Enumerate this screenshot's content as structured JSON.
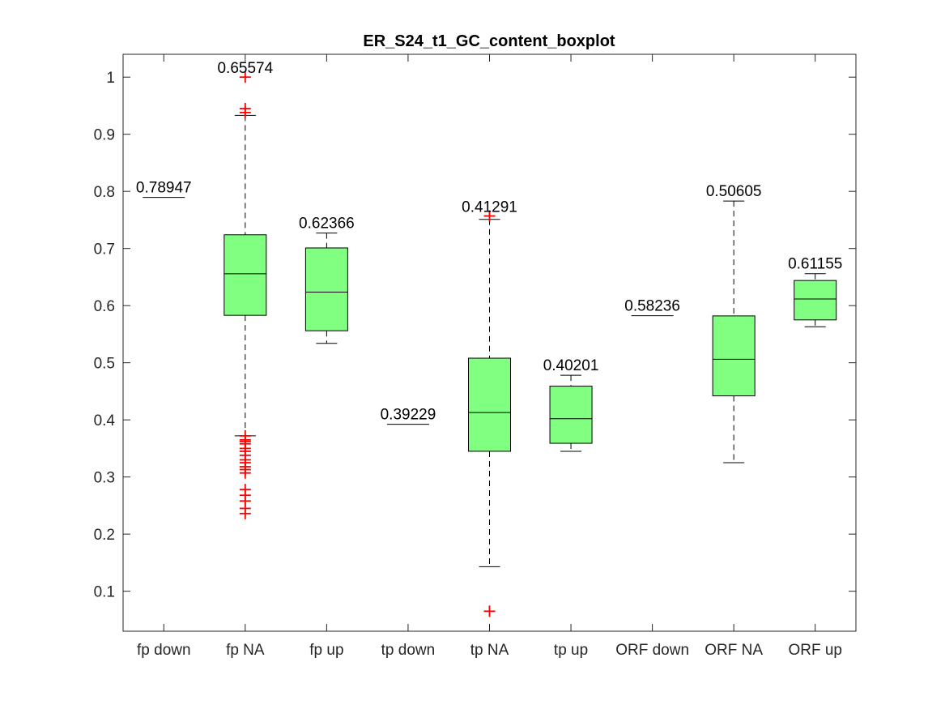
{
  "chart_data": {
    "type": "box",
    "title": "ER_S24_t1_GC_content_boxplot",
    "xlabel": "",
    "ylabel": "",
    "ylim": [
      0.03,
      1.04
    ],
    "yticks": [
      0.1,
      0.2,
      0.3,
      0.4,
      0.5,
      0.6,
      0.7,
      0.8,
      0.9,
      1
    ],
    "ytick_labels": [
      "0.1",
      "0.2",
      "0.3",
      "0.4",
      "0.5",
      "0.6",
      "0.7",
      "0.8",
      "0.9",
      "1"
    ],
    "grid": false,
    "categories": [
      "fp down",
      "fp NA",
      "fp up",
      "tp down",
      "tp NA",
      "tp up",
      "ORF down",
      "ORF NA",
      "ORF up"
    ],
    "boxes": [
      {
        "category": "fp down",
        "whisker_low": 0.78947,
        "q1": 0.78947,
        "median": 0.78947,
        "q3": 0.78947,
        "whisker_high": 0.78947,
        "median_label": "0.78947",
        "outliers": []
      },
      {
        "category": "fp NA",
        "whisker_low": 0.372,
        "q1": 0.583,
        "median": 0.65574,
        "q3": 0.724,
        "whisker_high": 0.933,
        "median_label": "0.65574",
        "outliers": [
          1.0,
          0.945,
          0.938,
          0.372,
          0.365,
          0.362,
          0.358,
          0.35,
          0.345,
          0.338,
          0.33,
          0.325,
          0.318,
          0.313,
          0.307,
          0.278,
          0.268,
          0.258,
          0.245,
          0.236
        ]
      },
      {
        "category": "fp up",
        "whisker_low": 0.534,
        "q1": 0.556,
        "median": 0.62366,
        "q3": 0.701,
        "whisker_high": 0.727,
        "median_label": "0.62366",
        "outliers": []
      },
      {
        "category": "tp down",
        "whisker_low": 0.39229,
        "q1": 0.39229,
        "median": 0.39229,
        "q3": 0.39229,
        "whisker_high": 0.39229,
        "median_label": "0.39229",
        "outliers": []
      },
      {
        "category": "tp NA",
        "whisker_low": 0.143,
        "q1": 0.345,
        "median": 0.41291,
        "q3": 0.508,
        "whisker_high": 0.751,
        "median_label": "0.41291",
        "outliers": [
          0.757,
          0.065
        ]
      },
      {
        "category": "tp up",
        "whisker_low": 0.345,
        "q1": 0.359,
        "median": 0.40201,
        "q3": 0.459,
        "whisker_high": 0.478,
        "median_label": "0.40201",
        "outliers": []
      },
      {
        "category": "ORF down",
        "whisker_low": 0.58236,
        "q1": 0.58236,
        "median": 0.58236,
        "q3": 0.58236,
        "whisker_high": 0.58236,
        "median_label": "0.58236",
        "outliers": []
      },
      {
        "category": "ORF NA",
        "whisker_low": 0.325,
        "q1": 0.442,
        "median": 0.50605,
        "q3": 0.582,
        "whisker_high": 0.783,
        "median_label": "0.50605",
        "outliers": []
      },
      {
        "category": "ORF up",
        "whisker_low": 0.563,
        "q1": 0.575,
        "median": 0.61155,
        "q3": 0.644,
        "whisker_high": 0.656,
        "median_label": "0.61155",
        "outliers": []
      }
    ],
    "colors": {
      "box_fill": "#80ff80",
      "box_edge": "#000000",
      "median_line": "#000000",
      "outlier": "#ff0000",
      "axis": "#262626"
    }
  }
}
